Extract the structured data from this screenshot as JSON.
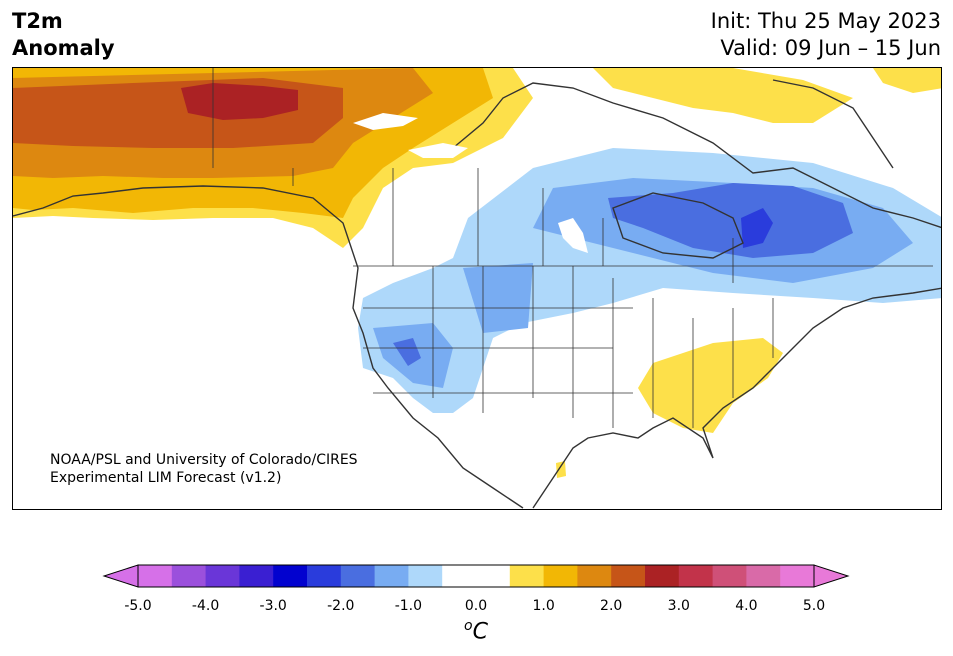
{
  "title": {
    "line1": "T2m",
    "line2": "Anomaly"
  },
  "dates": {
    "init": "Init: Thu 25 May 2023",
    "valid": "Valid: 09 Jun – 15 Jun"
  },
  "credit": {
    "line1": "NOAA/PSL and University of Colorado/CIRES",
    "line2": "Experimental LIM Forecast (v1.2)"
  },
  "colorbar": {
    "unit_degree": "o",
    "unit_symbol": "C",
    "ticks": [
      "-5.0",
      "-4.0",
      "-3.0",
      "-2.0",
      "-1.0",
      "0.0",
      "1.0",
      "2.0",
      "3.0",
      "4.0",
      "5.0"
    ],
    "colors": [
      "#d670e8",
      "#9b50dc",
      "#6a36d8",
      "#3a1fd2",
      "#0202cf",
      "#2a3cdc",
      "#4a6ee0",
      "#78acf2",
      "#aed8fa",
      "#ffffff",
      "#ffffff",
      "#fde04a",
      "#f2b705",
      "#dd8810",
      "#c65518",
      "#ab2224",
      "#c2334a",
      "#cf5078",
      "#d96aa8",
      "#e879d8"
    ]
  },
  "legend_colors": {
    "lt_blue": "#aed8fa",
    "mid_blue": "#78acf2",
    "blue": "#4a6ee0",
    "dk_blue": "#2a3cdc",
    "yellow": "#fde04a",
    "gold": "#f2b705",
    "orange": "#dd8810",
    "dk_orange": "#c65518",
    "red": "#ab2224"
  }
}
